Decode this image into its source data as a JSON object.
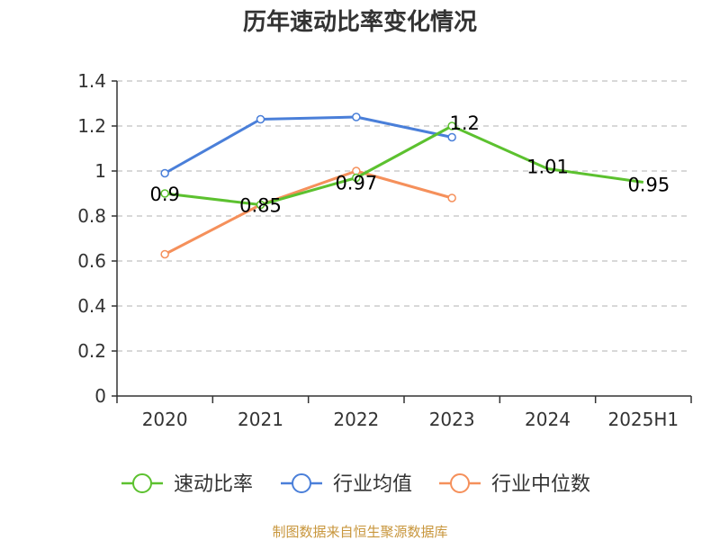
{
  "chart_data": {
    "type": "line",
    "title": "历年速动比率变化情况",
    "categories": [
      "2020",
      "2021",
      "2022",
      "2023",
      "2024",
      "2025H1"
    ],
    "ylim": [
      0,
      1.4
    ],
    "yticks": [
      "0",
      "0.2",
      "0.4",
      "0.6",
      "0.8",
      "1",
      "1.2",
      "1.4"
    ],
    "grid": "horizontal-dashed",
    "legend_position": "bottom",
    "series": [
      {
        "name": "速动比率",
        "color": "#5cc12f",
        "values": [
          0.9,
          0.85,
          0.97,
          1.2,
          1.01,
          0.95
        ],
        "labels": [
          "0.9",
          "0.85",
          "0.97",
          "1.2",
          "1.01",
          "0.95"
        ]
      },
      {
        "name": "行业均值",
        "color": "#4a7fd9",
        "values": [
          0.99,
          1.23,
          1.24,
          1.15,
          null,
          null
        ]
      },
      {
        "name": "行业中位数",
        "color": "#f5905b",
        "values": [
          0.63,
          0.85,
          1.0,
          0.88,
          null,
          null
        ]
      }
    ],
    "source": "制图数据来自恒生聚源数据库"
  }
}
